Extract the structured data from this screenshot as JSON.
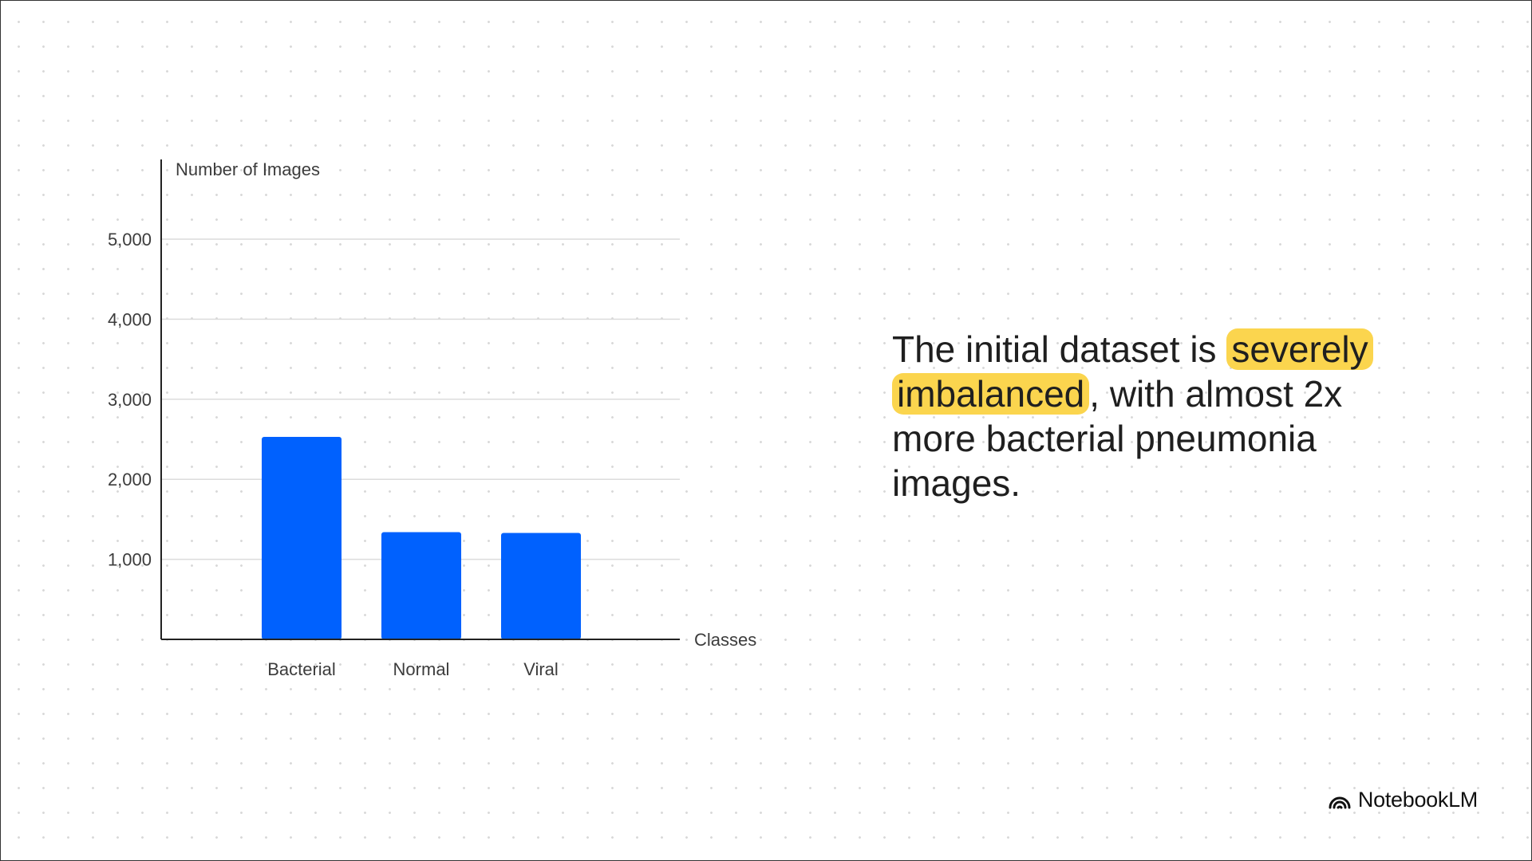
{
  "chart_data": {
    "type": "bar",
    "categories": [
      "Bacterial",
      "Normal",
      "Viral"
    ],
    "values": [
      2530,
      1340,
      1330
    ],
    "title": "",
    "xlabel": "Classes",
    "ylabel": "Number of Images",
    "ylim": [
      0,
      6000
    ],
    "yticks": [
      1000,
      2000,
      3000,
      4000,
      5000
    ],
    "ytick_labels": [
      "1,000",
      "2,000",
      "3,000",
      "4,000",
      "5,000"
    ],
    "grid": true,
    "legend": "none",
    "bar_color": "#0061fe"
  },
  "statement": {
    "before": "The initial dataset is ",
    "highlight": "severely imbalanced",
    "after": ", with almost 2x more bacterial pneumonia images.",
    "highlight_color": "#fbd54e"
  },
  "brand": {
    "name": "NotebookLM",
    "icon": "notebooklm-logo-icon"
  }
}
